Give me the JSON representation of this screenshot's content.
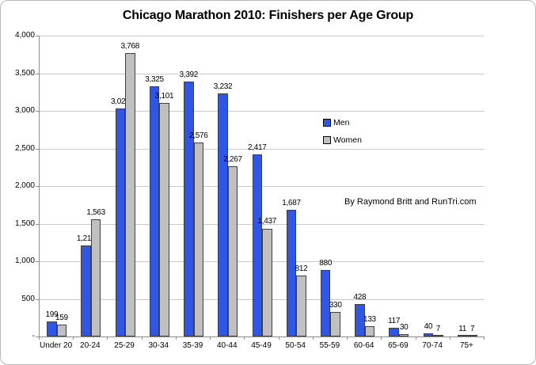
{
  "window": {
    "title": "Chicago Marathon 2010: Finishers per Age Group"
  },
  "chart_data": {
    "type": "bar",
    "title": "Chicago Marathon 2010: Finishers per Age Group",
    "categories": [
      "Under 20",
      "20-24",
      "25-29",
      "30-34",
      "35-39",
      "40-44",
      "45-49",
      "50-54",
      "55-59",
      "60-64",
      "65-69",
      "70-74",
      "75+"
    ],
    "series": [
      {
        "name": "Men",
        "color": "#2e56e8",
        "values": [
          199,
          1212,
          3029,
          3325,
          3392,
          3232,
          2417,
          1687,
          880,
          428,
          117,
          40,
          11
        ]
      },
      {
        "name": "Women",
        "color": "#c0c0c0",
        "values": [
          159,
          1563,
          3768,
          3101,
          2576,
          2267,
          1437,
          812,
          330,
          133,
          30,
          7,
          7
        ]
      }
    ],
    "data_labels_shown": true,
    "xlabel": "",
    "ylabel": "",
    "ylim": [
      0,
      4000
    ],
    "y_axis": {
      "min": 0,
      "max": 4000,
      "step": 500,
      "tick_labels": [
        "4,000",
        "3,500",
        "3,000",
        "2,500",
        "2,000",
        "1,500",
        "1,000",
        "500",
        "-"
      ]
    },
    "grid": true,
    "legend_position": "inside-right",
    "annotation": "By Raymond Britt and RunTri.com"
  }
}
